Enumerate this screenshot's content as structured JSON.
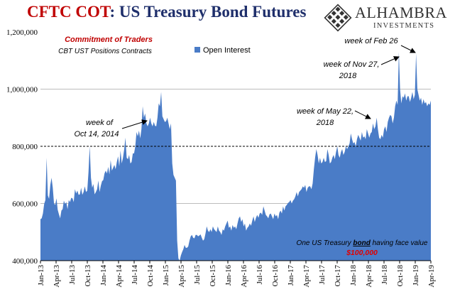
{
  "header": {
    "title_part1": "CFTC COT",
    "title_part2": ": US Treasury Bond Futures"
  },
  "logo": {
    "brand": "ALHAMBRA",
    "sub": "INVESTMENTS",
    "icon": "diamond-lattice-icon"
  },
  "colors": {
    "area": "#4a7cc7",
    "title_red": "#c00000",
    "title_blue": "#1f2f6b",
    "note_red": "#e00000"
  },
  "chart_data": {
    "type": "area",
    "title": "CFTC COT: US Treasury Bond Futures",
    "ylim": [
      400000,
      1200000
    ],
    "y_ticks": [
      "400,000",
      "600,000",
      "800,000",
      "1,000,000",
      "1,200,000"
    ],
    "y_tick_values": [
      400000,
      600000,
      800000,
      1000000,
      1200000
    ],
    "x_tick_labels": [
      "Jan-13",
      "Apr-13",
      "Jul-13",
      "Oct-13",
      "Jan-14",
      "Apr-14",
      "Jul-14",
      "Oct-14",
      "Jan-15",
      "Apr-15",
      "Jul-15",
      "Oct-15",
      "Jan-16",
      "Apr-16",
      "Jul-16",
      "Oct-16",
      "Jan-17",
      "Apr-17",
      "Jul-17",
      "Oct-17",
      "Jan-18",
      "Apr-18",
      "Jul-18",
      "Oct-18",
      "Jan-19",
      "Apr-19"
    ],
    "reference_line": 800000,
    "grid_lines": [
      600000,
      1000000
    ],
    "legend": {
      "label": "Open Interest",
      "placement": "top"
    },
    "annotations": {
      "commitment": "Commitment of Traders",
      "positions": "CBT UST Positions Contracts",
      "oct_line1": "week of",
      "oct_line2": "Oct 14, 2014",
      "may_line1": "week of May 22,",
      "may_line2": "2018",
      "nov_line1": "week of Nov 27,",
      "nov_line2": "2018",
      "feb": "week of Feb 26",
      "note_line1_a": "One US Treasury ",
      "note_line1_b": "bond",
      "note_line1_c": " having face value",
      "note_line2": "$100,000"
    },
    "series": [
      {
        "values": [
          545000,
          548000,
          565000,
          598000,
          612000,
          760000,
          628000,
          616000,
          665000,
          690000,
          655000,
          600000,
          595000,
          618000,
          578000,
          562000,
          548000,
          575000,
          580000,
          610000,
          598000,
          605000,
          580000,
          612000,
          605000,
          620000,
          618000,
          605000,
          650000,
          635000,
          645000,
          630000,
          632000,
          655000,
          630000,
          640000,
          660000,
          640000,
          645000,
          710000,
          800000,
          690000,
          655000,
          668000,
          632000,
          640000,
          650000,
          680000,
          640000,
          662000,
          678000,
          682000,
          705000,
          715000,
          705000,
          728000,
          702000,
          752000,
          715000,
          725000,
          735000,
          720000,
          745000,
          765000,
          730000,
          785000,
          740000,
          760000,
          790000,
          830000,
          760000,
          755000,
          770000,
          740000,
          745000,
          775000,
          775000,
          800000,
          850000,
          835000,
          855000,
          828000,
          860000,
          940000,
          900000,
          915000,
          880000,
          870000,
          880000,
          900000,
          880000,
          870000,
          885000,
          872000,
          870000,
          900000,
          950000,
          940000,
          990000,
          905000,
          895000,
          885000,
          888000,
          900000,
          880000,
          860000,
          880000,
          740000,
          700000,
          690000,
          680000,
          470000,
          408000,
          400000,
          418000,
          430000,
          440000,
          455000,
          445000,
          445000,
          450000,
          470000,
          485000,
          490000,
          480000,
          478000,
          490000,
          490000,
          485000,
          488000,
          492000,
          480000,
          470000,
          475000,
          495000,
          520000,
          505000,
          500000,
          510000,
          500000,
          520000,
          510000,
          505000,
          500000,
          520000,
          505000,
          500000,
          490000,
          510000,
          505000,
          520000,
          530000,
          540000,
          515000,
          520000,
          505000,
          525000,
          515000,
          520000,
          510000,
          530000,
          548000,
          555000,
          535000,
          545000,
          520000,
          530000,
          505000,
          515000,
          520000,
          530000,
          522000,
          540000,
          555000,
          535000,
          550000,
          560000,
          550000,
          565000,
          568000,
          560000,
          590000,
          575000,
          560000,
          555000,
          548000,
          562000,
          565000,
          555000,
          545000,
          565000,
          555000,
          560000,
          545000,
          568000,
          575000,
          565000,
          590000,
          575000,
          590000,
          595000,
          602000,
          605000,
          612000,
          600000,
          610000,
          615000,
          625000,
          640000,
          625000,
          640000,
          645000,
          650000,
          660000,
          655000,
          665000,
          640000,
          655000,
          660000,
          660000,
          650000,
          670000,
          720000,
          760000,
          790000,
          770000,
          740000,
          760000,
          740000,
          745000,
          760000,
          745000,
          748000,
          790000,
          770000,
          740000,
          745000,
          760000,
          770000,
          755000,
          780000,
          800000,
          770000,
          760000,
          780000,
          790000,
          770000,
          780000,
          800000,
          790000,
          800000,
          810000,
          845000,
          825000,
          810000,
          815000,
          800000,
          825000,
          840000,
          830000,
          820000,
          850000,
          830000,
          835000,
          825000,
          860000,
          845000,
          830000,
          845000,
          850000,
          880000,
          860000,
          870000,
          900000,
          860000,
          830000,
          825000,
          840000,
          830000,
          860000,
          870000,
          850000,
          885000,
          900000,
          910000,
          905000,
          880000,
          900000,
          940000,
          960000,
          945000,
          1130000,
          1000000,
          950000,
          975000,
          970000,
          985000,
          960000,
          975000,
          975000,
          955000,
          970000,
          990000,
          965000,
          980000,
          1125000,
          1000000,
          980000,
          960000,
          970000,
          945000,
          965000,
          950000,
          955000,
          940000,
          950000,
          945000,
          960000
        ]
      }
    ]
  }
}
